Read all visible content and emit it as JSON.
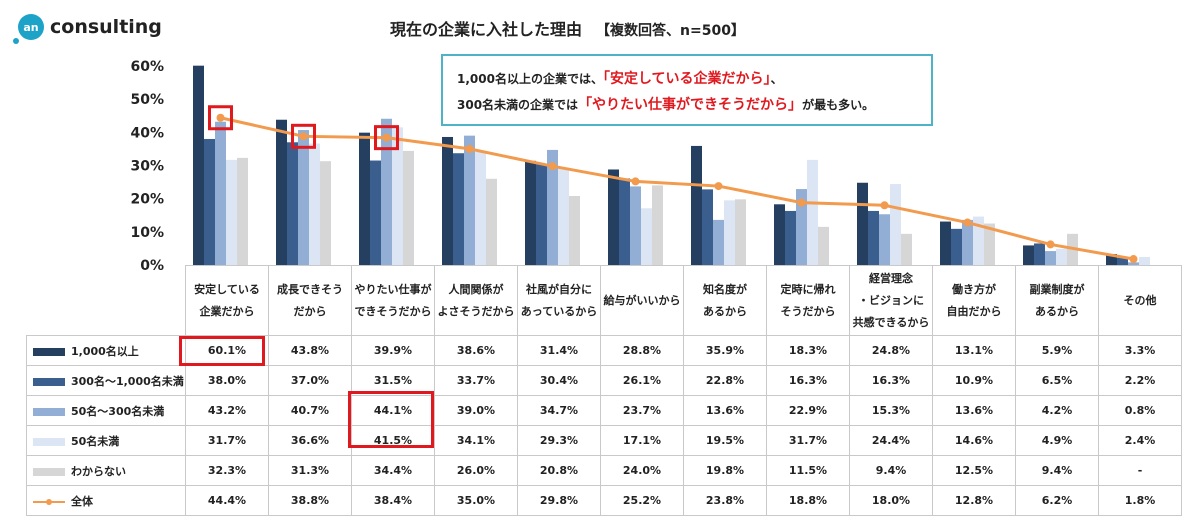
{
  "logo": {
    "mark": "an",
    "text": "consulting"
  },
  "title": "現在の企業に入社した理由",
  "subtitle": "【複数回答、n=500】",
  "callout": {
    "line1_pre": "1,000名以上の企業では、",
    "line1_hl": "「安定している企業だから」",
    "line1_post": "、",
    "line2_pre": "300名未満の企業では",
    "line2_hl": "「やりたい仕事ができそうだから」",
    "line2_post": "が最も多い。"
  },
  "colors": {
    "s1": "#243f60",
    "s2": "#3a5f8f",
    "s3": "#93aed4",
    "s4": "#dbe5f3",
    "s5": "#d6d6d6",
    "total": "#f29a4d",
    "highlight": "#e0191f"
  },
  "chart_data": {
    "type": "bar",
    "yticks": [
      "0%",
      "10%",
      "20%",
      "30%",
      "40%",
      "50%",
      "60%"
    ],
    "ylim": [
      0,
      60
    ],
    "categories": [
      [
        "安定している",
        "企業だから"
      ],
      [
        "成長できそう",
        "だから"
      ],
      [
        "やりたい仕事が",
        "できそうだから"
      ],
      [
        "人間関係が",
        "よさそうだから"
      ],
      [
        "社風が自分に",
        "あっているから"
      ],
      [
        "給与がいいから"
      ],
      [
        "知名度が",
        "あるから"
      ],
      [
        "定時に帰れ",
        "そうだから"
      ],
      [
        "経営理念",
        "・ビジョンに",
        "共感できるから"
      ],
      [
        "働き方が",
        "自由だから"
      ],
      [
        "副業制度が",
        "あるから"
      ],
      [
        "その他"
      ]
    ],
    "series": [
      {
        "name": "1,000名以上",
        "values": [
          60.1,
          43.8,
          39.9,
          38.6,
          31.4,
          28.8,
          35.9,
          18.3,
          24.8,
          13.1,
          5.9,
          3.3
        ],
        "labels": [
          "60.1%",
          "43.8%",
          "39.9%",
          "38.6%",
          "31.4%",
          "28.8%",
          "35.9%",
          "18.3%",
          "24.8%",
          "13.1%",
          "5.9%",
          "3.3%"
        ]
      },
      {
        "name": "300名～1,000名未満",
        "values": [
          38.0,
          37.0,
          31.5,
          33.7,
          30.4,
          26.1,
          22.8,
          16.3,
          16.3,
          10.9,
          6.5,
          2.2
        ],
        "labels": [
          "38.0%",
          "37.0%",
          "31.5%",
          "33.7%",
          "30.4%",
          "26.1%",
          "22.8%",
          "16.3%",
          "16.3%",
          "10.9%",
          "6.5%",
          "2.2%"
        ]
      },
      {
        "name": "50名～300名未満",
        "values": [
          43.2,
          40.7,
          44.1,
          39.0,
          34.7,
          23.7,
          13.6,
          22.9,
          15.3,
          13.6,
          4.2,
          0.8
        ],
        "labels": [
          "43.2%",
          "40.7%",
          "44.1%",
          "39.0%",
          "34.7%",
          "23.7%",
          "13.6%",
          "22.9%",
          "15.3%",
          "13.6%",
          "4.2%",
          "0.8%"
        ]
      },
      {
        "name": "50名未満",
        "values": [
          31.7,
          36.6,
          41.5,
          34.1,
          29.3,
          17.1,
          19.5,
          31.7,
          24.4,
          14.6,
          4.9,
          2.4
        ],
        "labels": [
          "31.7%",
          "36.6%",
          "41.5%",
          "34.1%",
          "29.3%",
          "17.1%",
          "19.5%",
          "31.7%",
          "24.4%",
          "14.6%",
          "4.9%",
          "2.4%"
        ]
      },
      {
        "name": "わからない",
        "values": [
          32.3,
          31.3,
          34.4,
          26.0,
          20.8,
          24.0,
          19.8,
          11.5,
          9.4,
          12.5,
          9.4,
          0
        ],
        "labels": [
          "32.3%",
          "31.3%",
          "34.4%",
          "26.0%",
          "20.8%",
          "24.0%",
          "19.8%",
          "11.5%",
          "9.4%",
          "12.5%",
          "9.4%",
          "-"
        ]
      },
      {
        "name": "全体",
        "values": [
          44.4,
          38.8,
          38.4,
          35.0,
          29.8,
          25.2,
          23.8,
          18.8,
          18.0,
          12.8,
          6.2,
          1.8
        ],
        "labels": [
          "44.4%",
          "38.8%",
          "38.4%",
          "35.0%",
          "29.8%",
          "25.2%",
          "23.8%",
          "18.8%",
          "18.0%",
          "12.8%",
          "6.2%",
          "1.8%"
        ]
      }
    ]
  }
}
